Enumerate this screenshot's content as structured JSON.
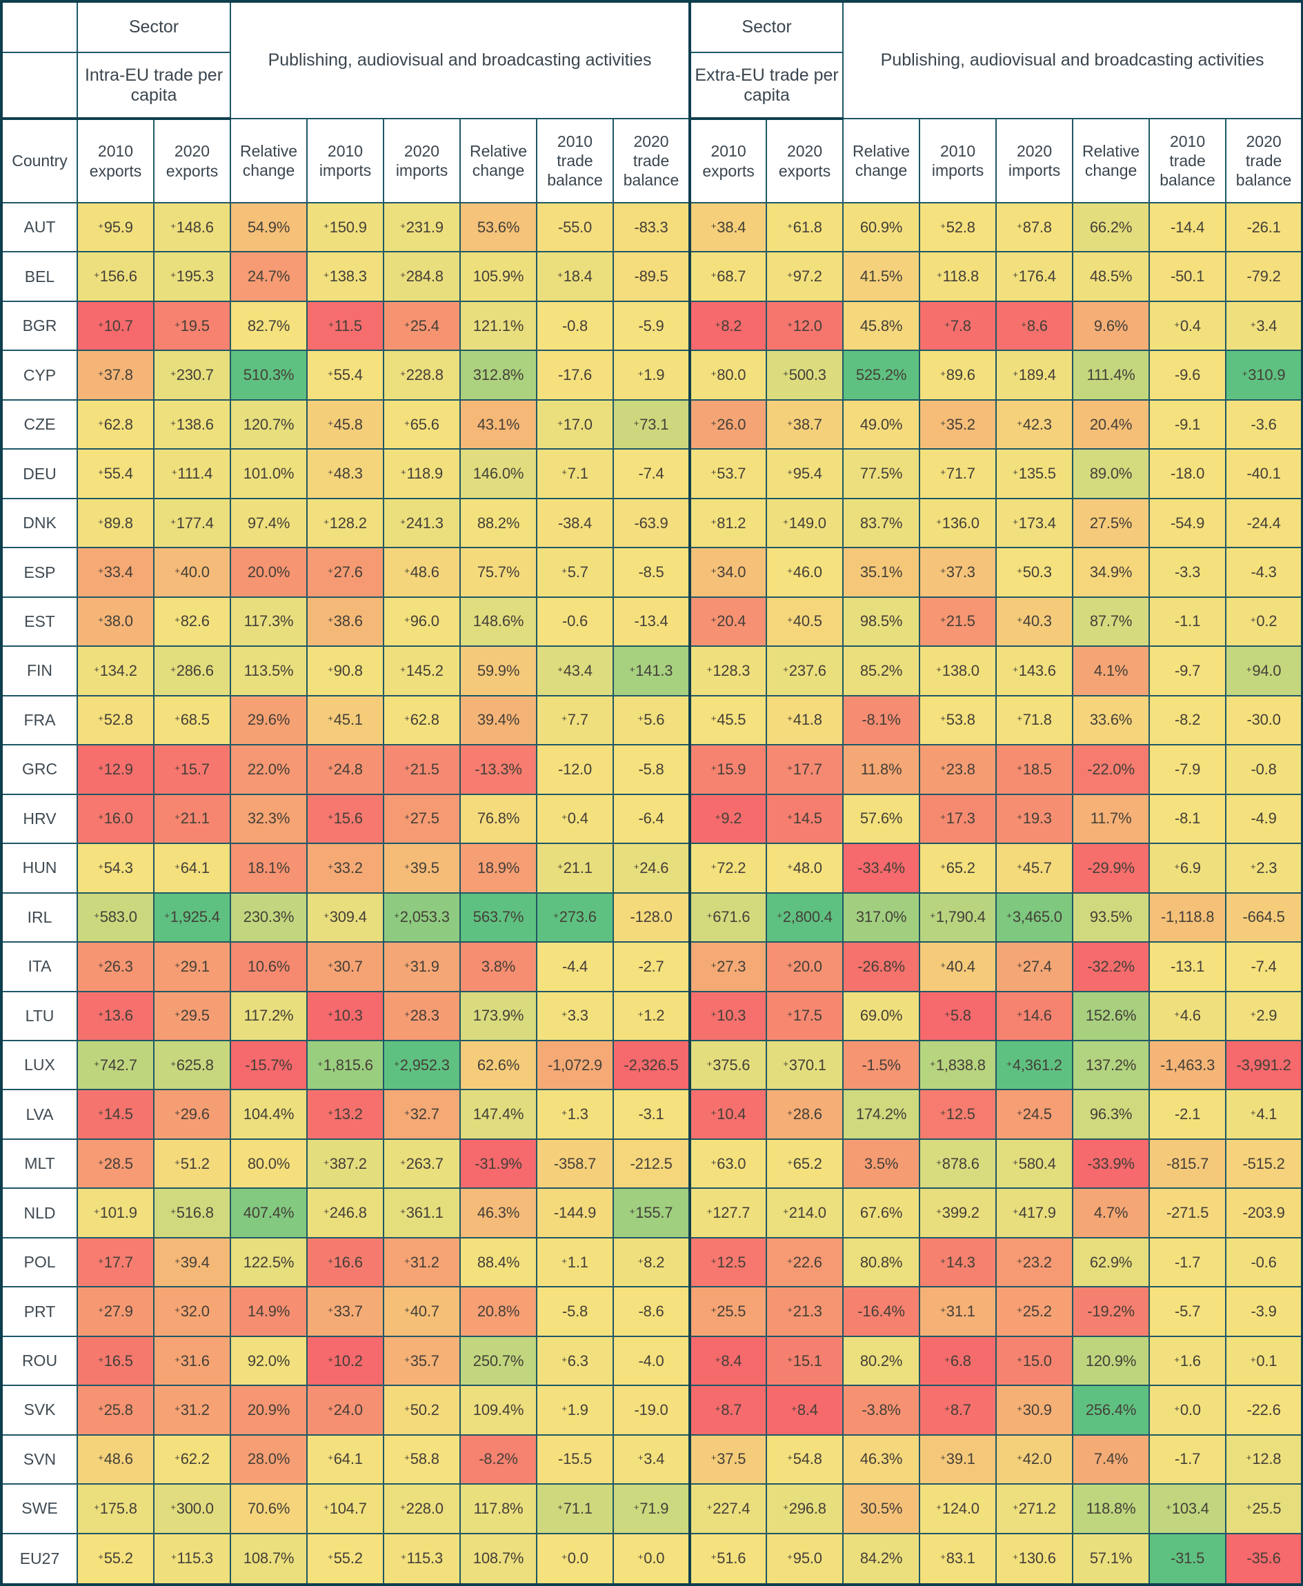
{
  "chart_data": {
    "type": "table",
    "subtype": "heatmap-table",
    "sector_label": "Sector",
    "groups": [
      {
        "id": "intra",
        "scope": "Intra-EU trade per capita",
        "activity": "Publishing, audiovisual and broadcasting activities"
      },
      {
        "id": "extra",
        "scope": "Extra-EU trade per capita",
        "activity": "Publishing, audiovisual and broadcasting activities"
      }
    ],
    "country_header": "Country",
    "columns": [
      "2010 exports",
      "2020 exports",
      "Relative change",
      "2010 imports",
      "2020 imports",
      "Relative change",
      "2010 trade balance",
      "2020 trade balance"
    ],
    "rows": [
      {
        "country": "AUT",
        "intra": [
          "+95.9",
          "+148.6",
          "54.9%",
          "+150.9",
          "+231.9",
          "53.6%",
          "-55.0",
          "-83.3"
        ],
        "extra": [
          "+38.4",
          "+61.8",
          "60.9%",
          "+52.8",
          "+87.8",
          "66.2%",
          "-14.4",
          "-26.1"
        ]
      },
      {
        "country": "BEL",
        "intra": [
          "+156.6",
          "+195.3",
          "24.7%",
          "+138.3",
          "+284.8",
          "105.9%",
          "+18.4",
          "-89.5"
        ],
        "extra": [
          "+68.7",
          "+97.2",
          "41.5%",
          "+118.8",
          "+176.4",
          "48.5%",
          "-50.1",
          "-79.2"
        ]
      },
      {
        "country": "BGR",
        "intra": [
          "+10.7",
          "+19.5",
          "82.7%",
          "+11.5",
          "+25.4",
          "121.1%",
          "-0.8",
          "-5.9"
        ],
        "extra": [
          "+8.2",
          "+12.0",
          "45.8%",
          "+7.8",
          "+8.6",
          "9.6%",
          "+0.4",
          "+3.4"
        ]
      },
      {
        "country": "CYP",
        "intra": [
          "+37.8",
          "+230.7",
          "510.3%",
          "+55.4",
          "+228.8",
          "312.8%",
          "-17.6",
          "+1.9"
        ],
        "extra": [
          "+80.0",
          "+500.3",
          "525.2%",
          "+89.6",
          "+189.4",
          "111.4%",
          "-9.6",
          "+310.9"
        ]
      },
      {
        "country": "CZE",
        "intra": [
          "+62.8",
          "+138.6",
          "120.7%",
          "+45.8",
          "+65.6",
          "43.1%",
          "+17.0",
          "+73.1"
        ],
        "extra": [
          "+26.0",
          "+38.7",
          "49.0%",
          "+35.2",
          "+42.3",
          "20.4%",
          "-9.1",
          "-3.6"
        ]
      },
      {
        "country": "DEU",
        "intra": [
          "+55.4",
          "+111.4",
          "101.0%",
          "+48.3",
          "+118.9",
          "146.0%",
          "+7.1",
          "-7.4"
        ],
        "extra": [
          "+53.7",
          "+95.4",
          "77.5%",
          "+71.7",
          "+135.5",
          "89.0%",
          "-18.0",
          "-40.1"
        ]
      },
      {
        "country": "DNK",
        "intra": [
          "+89.8",
          "+177.4",
          "97.4%",
          "+128.2",
          "+241.3",
          "88.2%",
          "-38.4",
          "-63.9"
        ],
        "extra": [
          "+81.2",
          "+149.0",
          "83.7%",
          "+136.0",
          "+173.4",
          "27.5%",
          "-54.9",
          "-24.4"
        ]
      },
      {
        "country": "ESP",
        "intra": [
          "+33.4",
          "+40.0",
          "20.0%",
          "+27.6",
          "+48.6",
          "75.7%",
          "+5.7",
          "-8.5"
        ],
        "extra": [
          "+34.0",
          "+46.0",
          "35.1%",
          "+37.3",
          "+50.3",
          "34.9%",
          "-3.3",
          "-4.3"
        ]
      },
      {
        "country": "EST",
        "intra": [
          "+38.0",
          "+82.6",
          "117.3%",
          "+38.6",
          "+96.0",
          "148.6%",
          "-0.6",
          "-13.4"
        ],
        "extra": [
          "+20.4",
          "+40.5",
          "98.5%",
          "+21.5",
          "+40.3",
          "87.7%",
          "-1.1",
          "+0.2"
        ]
      },
      {
        "country": "FIN",
        "intra": [
          "+134.2",
          "+286.6",
          "113.5%",
          "+90.8",
          "+145.2",
          "59.9%",
          "+43.4",
          "+141.3"
        ],
        "extra": [
          "+128.3",
          "+237.6",
          "85.2%",
          "+138.0",
          "+143.6",
          "4.1%",
          "-9.7",
          "+94.0"
        ]
      },
      {
        "country": "FRA",
        "intra": [
          "+52.8",
          "+68.5",
          "29.6%",
          "+45.1",
          "+62.8",
          "39.4%",
          "+7.7",
          "+5.6"
        ],
        "extra": [
          "+45.5",
          "+41.8",
          "-8.1%",
          "+53.8",
          "+71.8",
          "33.6%",
          "-8.2",
          "-30.0"
        ]
      },
      {
        "country": "GRC",
        "intra": [
          "+12.9",
          "+15.7",
          "22.0%",
          "+24.8",
          "+21.5",
          "-13.3%",
          "-12.0",
          "-5.8"
        ],
        "extra": [
          "+15.9",
          "+17.7",
          "11.8%",
          "+23.8",
          "+18.5",
          "-22.0%",
          "-7.9",
          "-0.8"
        ]
      },
      {
        "country": "HRV",
        "intra": [
          "+16.0",
          "+21.1",
          "32.3%",
          "+15.6",
          "+27.5",
          "76.8%",
          "+0.4",
          "-6.4"
        ],
        "extra": [
          "+9.2",
          "+14.5",
          "57.6%",
          "+17.3",
          "+19.3",
          "11.7%",
          "-8.1",
          "-4.9"
        ]
      },
      {
        "country": "HUN",
        "intra": [
          "+54.3",
          "+64.1",
          "18.1%",
          "+33.2",
          "+39.5",
          "18.9%",
          "+21.1",
          "+24.6"
        ],
        "extra": [
          "+72.2",
          "+48.0",
          "-33.4%",
          "+65.2",
          "+45.7",
          "-29.9%",
          "+6.9",
          "+2.3"
        ]
      },
      {
        "country": "IRL",
        "intra": [
          "+583.0",
          "+1,925.4",
          "230.3%",
          "+309.4",
          "+2,053.3",
          "563.7%",
          "+273.6",
          "-128.0"
        ],
        "extra": [
          "+671.6",
          "+2,800.4",
          "317.0%",
          "+1,790.4",
          "+3,465.0",
          "93.5%",
          "-1,118.8",
          "-664.5"
        ]
      },
      {
        "country": "ITA",
        "intra": [
          "+26.3",
          "+29.1",
          "10.6%",
          "+30.7",
          "+31.9",
          "3.8%",
          "-4.4",
          "-2.7"
        ],
        "extra": [
          "+27.3",
          "+20.0",
          "-26.8%",
          "+40.4",
          "+27.4",
          "-32.2%",
          "-13.1",
          "-7.4"
        ]
      },
      {
        "country": "LTU",
        "intra": [
          "+13.6",
          "+29.5",
          "117.2%",
          "+10.3",
          "+28.3",
          "173.9%",
          "+3.3",
          "+1.2"
        ],
        "extra": [
          "+10.3",
          "+17.5",
          "69.0%",
          "+5.8",
          "+14.6",
          "152.6%",
          "+4.6",
          "+2.9"
        ]
      },
      {
        "country": "LUX",
        "intra": [
          "+742.7",
          "+625.8",
          "-15.7%",
          "+1,815.6",
          "+2,952.3",
          "62.6%",
          "-1,072.9",
          "-2,326.5"
        ],
        "extra": [
          "+375.6",
          "+370.1",
          "-1.5%",
          "+1,838.8",
          "+4,361.2",
          "137.2%",
          "-1,463.3",
          "-3,991.2"
        ]
      },
      {
        "country": "LVA",
        "intra": [
          "+14.5",
          "+29.6",
          "104.4%",
          "+13.2",
          "+32.7",
          "147.4%",
          "+1.3",
          "-3.1"
        ],
        "extra": [
          "+10.4",
          "+28.6",
          "174.2%",
          "+12.5",
          "+24.5",
          "96.3%",
          "-2.1",
          "+4.1"
        ]
      },
      {
        "country": "MLT",
        "intra": [
          "+28.5",
          "+51.2",
          "80.0%",
          "+387.2",
          "+263.7",
          "-31.9%",
          "-358.7",
          "-212.5"
        ],
        "extra": [
          "+63.0",
          "+65.2",
          "3.5%",
          "+878.6",
          "+580.4",
          "-33.9%",
          "-815.7",
          "-515.2"
        ]
      },
      {
        "country": "NLD",
        "intra": [
          "+101.9",
          "+516.8",
          "407.4%",
          "+246.8",
          "+361.1",
          "46.3%",
          "-144.9",
          "+155.7"
        ],
        "extra": [
          "+127.7",
          "+214.0",
          "67.6%",
          "+399.2",
          "+417.9",
          "4.7%",
          "-271.5",
          "-203.9"
        ]
      },
      {
        "country": "POL",
        "intra": [
          "+17.7",
          "+39.4",
          "122.5%",
          "+16.6",
          "+31.2",
          "88.4%",
          "+1.1",
          "+8.2"
        ],
        "extra": [
          "+12.5",
          "+22.6",
          "80.8%",
          "+14.3",
          "+23.2",
          "62.9%",
          "-1.7",
          "-0.6"
        ]
      },
      {
        "country": "PRT",
        "intra": [
          "+27.9",
          "+32.0",
          "14.9%",
          "+33.7",
          "+40.7",
          "20.8%",
          "-5.8",
          "-8.6"
        ],
        "extra": [
          "+25.5",
          "+21.3",
          "-16.4%",
          "+31.1",
          "+25.2",
          "-19.2%",
          "-5.7",
          "-3.9"
        ]
      },
      {
        "country": "ROU",
        "intra": [
          "+16.5",
          "+31.6",
          "92.0%",
          "+10.2",
          "+35.7",
          "250.7%",
          "+6.3",
          "-4.0"
        ],
        "extra": [
          "+8.4",
          "+15.1",
          "80.2%",
          "+6.8",
          "+15.0",
          "120.9%",
          "+1.6",
          "+0.1"
        ]
      },
      {
        "country": "SVK",
        "intra": [
          "+25.8",
          "+31.2",
          "20.9%",
          "+24.0",
          "+50.2",
          "109.4%",
          "+1.9",
          "-19.0"
        ],
        "extra": [
          "+8.7",
          "+8.4",
          "-3.8%",
          "+8.7",
          "+30.9",
          "256.4%",
          "+0.0",
          "-22.6"
        ]
      },
      {
        "country": "SVN",
        "intra": [
          "+48.6",
          "+62.2",
          "28.0%",
          "+64.1",
          "+58.8",
          "-8.2%",
          "-15.5",
          "+3.4"
        ],
        "extra": [
          "+37.5",
          "+54.8",
          "46.3%",
          "+39.1",
          "+42.0",
          "7.4%",
          "-1.7",
          "+12.8"
        ]
      },
      {
        "country": "SWE",
        "intra": [
          "+175.8",
          "+300.0",
          "70.6%",
          "+104.7",
          "+228.0",
          "117.8%",
          "+71.1",
          "+71.9"
        ],
        "extra": [
          "+227.4",
          "+296.8",
          "30.5%",
          "+124.0",
          "+271.2",
          "118.8%",
          "+103.4",
          "+25.5"
        ]
      },
      {
        "country": "EU27",
        "intra": [
          "+55.2",
          "+115.3",
          "108.7%",
          "+55.2",
          "+115.3",
          "108.7%",
          "+0.0",
          "+0.0"
        ],
        "extra": [
          "+51.6",
          "+95.0",
          "84.2%",
          "+83.1",
          "+130.6",
          "57.1%",
          "-31.5",
          "-35.6"
        ]
      }
    ],
    "colors": {
      "scale_low": "#f6696c",
      "scale_mid": "#f5e17d",
      "scale_high": "#5fc181",
      "border_thin": "#1d5766",
      "border_thick": "#0f3e4e",
      "cell_text": "#443f38",
      "header_text": "#3a454e",
      "label_bg": "#ffffff"
    },
    "color_scale": {
      "midpoint": "median",
      "scale_groups": [
        [
          0,
          1
        ],
        [
          2
        ],
        [
          3,
          4
        ],
        [
          5
        ],
        [
          6,
          7
        ]
      ],
      "overrides": [
        {
          "country": "EU27",
          "section": "extra",
          "col": 6,
          "stop": "high"
        },
        {
          "country": "EU27",
          "section": "extra",
          "col": 7,
          "stop": "low"
        }
      ]
    },
    "layout": {
      "band1_height": 74,
      "band2_height": 96,
      "colhead_height": 122,
      "country_col_width": 110,
      "data_col_width": 111
    }
  }
}
